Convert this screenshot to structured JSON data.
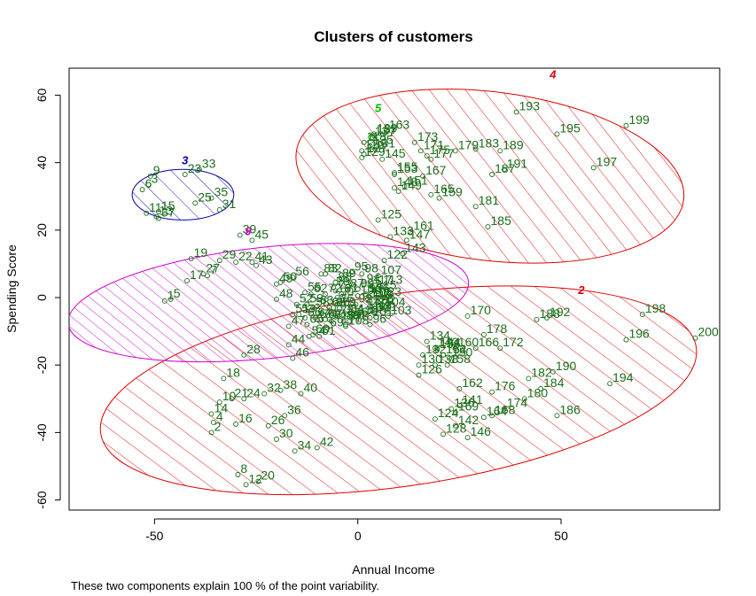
{
  "chart_data": {
    "type": "scatter",
    "title": "Clusters of customers",
    "xlabel": "Annual Income",
    "ylabel": "Spending Score",
    "xlim": [
      -71,
      89
    ],
    "ylim": [
      -63,
      68
    ],
    "xticks": [
      -50,
      0,
      50
    ],
    "yticks": [
      -60,
      -40,
      -20,
      0,
      20,
      40,
      60
    ],
    "grid": false,
    "footnote": "These two components explain 100 % of the point variability.",
    "points": [
      {
        "id": "1",
        "x": -47.5,
        "y": -1
      },
      {
        "id": "2",
        "x": -36,
        "y": -40
      },
      {
        "id": "3",
        "x": -51.5,
        "y": 33.5
      },
      {
        "id": "4",
        "x": -35.5,
        "y": -37
      },
      {
        "id": "5",
        "x": -46,
        "y": -0.5
      },
      {
        "id": "6",
        "x": -53,
        "y": 32
      },
      {
        "id": "7",
        "x": -37,
        "y": 6.5
      },
      {
        "id": "8",
        "x": -29.5,
        "y": -52.5
      },
      {
        "id": "9",
        "x": -51,
        "y": 36
      },
      {
        "id": "10",
        "x": -34,
        "y": -31
      },
      {
        "id": "11",
        "x": -52,
        "y": 25
      },
      {
        "id": "12",
        "x": -27.5,
        "y": -55.5
      },
      {
        "id": "13",
        "x": -49.5,
        "y": 24
      },
      {
        "id": "14",
        "x": -36,
        "y": -34.5
      },
      {
        "id": "15",
        "x": -49,
        "y": 25.5
      },
      {
        "id": "16",
        "x": -30,
        "y": -37.5
      },
      {
        "id": "17",
        "x": -42,
        "y": 5
      },
      {
        "id": "18",
        "x": -33,
        "y": -24
      },
      {
        "id": "19",
        "x": -41,
        "y": 11.5
      },
      {
        "id": "20",
        "x": -24.5,
        "y": -54.5
      },
      {
        "id": "21",
        "x": -31,
        "y": -30
      },
      {
        "id": "22",
        "x": -30,
        "y": 10.5
      },
      {
        "id": "23",
        "x": -42.5,
        "y": 36.5
      },
      {
        "id": "24",
        "x": -28,
        "y": -30
      },
      {
        "id": "25",
        "x": -40,
        "y": 28
      },
      {
        "id": "26",
        "x": -22,
        "y": -38
      },
      {
        "id": "27",
        "x": -38,
        "y": 7
      },
      {
        "id": "28",
        "x": -28,
        "y": -17
      },
      {
        "id": "29",
        "x": -34,
        "y": 11
      },
      {
        "id": "30",
        "x": -20,
        "y": -42
      },
      {
        "id": "31",
        "x": -34,
        "y": 26
      },
      {
        "id": "32",
        "x": -23,
        "y": -28.5
      },
      {
        "id": "33",
        "x": -39,
        "y": 38
      },
      {
        "id": "34",
        "x": -15.5,
        "y": -45.5
      },
      {
        "id": "35",
        "x": -36,
        "y": 29.5
      },
      {
        "id": "36",
        "x": -18,
        "y": -35
      },
      {
        "id": "37",
        "x": -49,
        "y": 23.5
      },
      {
        "id": "38",
        "x": -19,
        "y": -27.5
      },
      {
        "id": "39",
        "x": -29,
        "y": 18.5
      },
      {
        "id": "40",
        "x": -14,
        "y": -28.5
      },
      {
        "id": "41",
        "x": -26,
        "y": 10.5
      },
      {
        "id": "42",
        "x": -10,
        "y": -44.5
      },
      {
        "id": "43",
        "x": -25,
        "y": 9.5
      },
      {
        "id": "44",
        "x": -17,
        "y": -14
      },
      {
        "id": "45",
        "x": -26,
        "y": 17
      },
      {
        "id": "46",
        "x": -16,
        "y": -18
      },
      {
        "id": "47",
        "x": -17,
        "y": -8.5
      },
      {
        "id": "48",
        "x": -20,
        "y": -0.5
      },
      {
        "id": "49",
        "x": -20,
        "y": 4
      },
      {
        "id": "50",
        "x": -19,
        "y": 4.5
      },
      {
        "id": "51",
        "x": -16,
        "y": -5
      },
      {
        "id": "52",
        "x": -15,
        "y": -2
      },
      {
        "id": "53",
        "x": -14.5,
        "y": -5
      },
      {
        "id": "54",
        "x": -12,
        "y": -11.5
      },
      {
        "id": "55",
        "x": -13,
        "y": 1.5
      },
      {
        "id": "56",
        "x": -16,
        "y": 6
      },
      {
        "id": "57",
        "x": -10,
        "y": -6.5
      },
      {
        "id": "58",
        "x": -11,
        "y": -3
      },
      {
        "id": "59",
        "x": -12.5,
        "y": -2
      },
      {
        "id": "60",
        "x": -11,
        "y": -11
      },
      {
        "id": "61",
        "x": -9.5,
        "y": -11.5
      },
      {
        "id": "62",
        "x": -11.5,
        "y": 1
      },
      {
        "id": "63",
        "x": -10,
        "y": -2.5
      },
      {
        "id": "64",
        "x": -10.5,
        "y": -6
      },
      {
        "id": "65",
        "x": -12.5,
        "y": -8
      },
      {
        "id": "66",
        "x": -13,
        "y": -6
      },
      {
        "id": "67",
        "x": -8,
        "y": -6.5
      },
      {
        "id": "68",
        "x": -7,
        "y": -3
      },
      {
        "id": "69",
        "x": -7.5,
        "y": -9
      },
      {
        "id": "70",
        "x": -7,
        "y": -6.5
      },
      {
        "id": "71",
        "x": -6.5,
        "y": -7
      },
      {
        "id": "72",
        "x": -8,
        "y": 1
      },
      {
        "id": "73",
        "x": -5.5,
        "y": 2
      },
      {
        "id": "74",
        "x": -9,
        "y": -6.5
      },
      {
        "id": "75",
        "x": -5,
        "y": -5.5
      },
      {
        "id": "76",
        "x": -5,
        "y": -2
      },
      {
        "id": "77",
        "x": -3,
        "y": -8
      },
      {
        "id": "78",
        "x": -6,
        "y": 3
      },
      {
        "id": "79",
        "x": -4.5,
        "y": -3
      },
      {
        "id": "80",
        "x": -3.5,
        "y": -7
      },
      {
        "id": "81",
        "x": -4,
        "y": 1
      },
      {
        "id": "82",
        "x": -8,
        "y": 7
      },
      {
        "id": "83",
        "x": -9,
        "y": 7
      },
      {
        "id": "84",
        "x": -2.5,
        "y": -5
      },
      {
        "id": "85",
        "x": -6,
        "y": -3
      },
      {
        "id": "86",
        "x": -1.5,
        "y": -6
      },
      {
        "id": "87",
        "x": -2.5,
        "y": 2.5
      },
      {
        "id": "88",
        "x": -5.5,
        "y": 4.5
      },
      {
        "id": "89",
        "x": -4.5,
        "y": 5.5
      },
      {
        "id": "90",
        "x": -5,
        "y": 0
      },
      {
        "id": "91",
        "x": -2,
        "y": -7
      },
      {
        "id": "92",
        "x": -0.5,
        "y": -2
      },
      {
        "id": "93",
        "x": 2,
        "y": 1
      },
      {
        "id": "94",
        "x": 1.5,
        "y": 4
      },
      {
        "id": "95",
        "x": -1.5,
        "y": 7.5
      },
      {
        "id": "96",
        "x": 3,
        "y": -8
      },
      {
        "id": "97",
        "x": 3.5,
        "y": -3.5
      },
      {
        "id": "98",
        "x": 1,
        "y": 7
      },
      {
        "id": "99",
        "x": 0,
        "y": 2.5
      },
      {
        "id": "100",
        "x": 0,
        "y": 0.5
      },
      {
        "id": "101",
        "x": 3,
        "y": -6
      },
      {
        "id": "102",
        "x": 3.5,
        "y": -2.5
      },
      {
        "id": "103",
        "x": 7.5,
        "y": -5.5
      },
      {
        "id": "104",
        "x": 6,
        "y": -3
      },
      {
        "id": "105",
        "x": 3,
        "y": 0
      },
      {
        "id": "106",
        "x": 2,
        "y": 1
      },
      {
        "id": "107",
        "x": 5,
        "y": 6.5
      },
      {
        "id": "108",
        "x": -3,
        "y": -8.5
      },
      {
        "id": "109",
        "x": 2,
        "y": -5
      },
      {
        "id": "110",
        "x": -0.5,
        "y": -5.5
      },
      {
        "id": "111",
        "x": -3.5,
        "y": -5
      },
      {
        "id": "112",
        "x": 2.5,
        "y": -0.5
      },
      {
        "id": "113",
        "x": 5.5,
        "y": 3.5
      },
      {
        "id": "114",
        "x": 3,
        "y": -4
      },
      {
        "id": "115",
        "x": 4,
        "y": 2
      },
      {
        "id": "116",
        "x": 3,
        "y": -1
      },
      {
        "id": "117",
        "x": 3,
        "y": 3.5
      },
      {
        "id": "118",
        "x": 1.5,
        "y": 46
      },
      {
        "id": "119",
        "x": 1,
        "y": 43.5
      },
      {
        "id": "120",
        "x": 3,
        "y": -2.5
      },
      {
        "id": "121",
        "x": 4,
        "y": -4.5
      },
      {
        "id": "122",
        "x": 6.5,
        "y": 11
      },
      {
        "id": "123",
        "x": 5,
        "y": 0
      },
      {
        "id": "124",
        "x": 19,
        "y": -36
      },
      {
        "id": "125",
        "x": 5,
        "y": 23
      },
      {
        "id": "126",
        "x": 15,
        "y": -23
      },
      {
        "id": "127",
        "x": 1.5,
        "y": 42.5
      },
      {
        "id": "128",
        "x": 21,
        "y": -40.5
      },
      {
        "id": "129",
        "x": 1,
        "y": 41.5
      },
      {
        "id": "130",
        "x": 15,
        "y": -20
      },
      {
        "id": "131",
        "x": 3.5,
        "y": 44
      },
      {
        "id": "132",
        "x": 16,
        "y": -17
      },
      {
        "id": "133",
        "x": 8,
        "y": 18
      },
      {
        "id": "134",
        "x": 17,
        "y": -13
      },
      {
        "id": "135",
        "x": 3,
        "y": 45
      },
      {
        "id": "136",
        "x": 23,
        "y": -33
      },
      {
        "id": "137",
        "x": 3.5,
        "y": 47.5
      },
      {
        "id": "138",
        "x": 19,
        "y": -20
      },
      {
        "id": "139",
        "x": 4,
        "y": 48.5
      },
      {
        "id": "140",
        "x": 19,
        "y": -15
      },
      {
        "id": "141",
        "x": 25,
        "y": -32
      },
      {
        "id": "142",
        "x": 24,
        "y": -38
      },
      {
        "id": "143",
        "x": 11,
        "y": 13
      },
      {
        "id": "144",
        "x": 19.5,
        "y": -15
      },
      {
        "id": "145",
        "x": 6,
        "y": 41
      },
      {
        "id": "146",
        "x": 27,
        "y": -41.5
      },
      {
        "id": "147",
        "x": 12,
        "y": 17
      },
      {
        "id": "148",
        "x": 9,
        "y": 32.5
      },
      {
        "id": "149",
        "x": 10,
        "y": 31.5
      },
      {
        "id": "150",
        "x": 22.5,
        "y": -18
      },
      {
        "id": "151",
        "x": 11.5,
        "y": 33
      },
      {
        "id": "152",
        "x": 21,
        "y": -17
      },
      {
        "id": "153",
        "x": 9,
        "y": 36.5
      },
      {
        "id": "154",
        "x": 21,
        "y": -17
      },
      {
        "id": "155",
        "x": 9,
        "y": 37
      },
      {
        "id": "156",
        "x": 19.5,
        "y": -15.5
      },
      {
        "id": "157",
        "x": 4,
        "y": 48
      },
      {
        "id": "158",
        "x": 22,
        "y": -20
      },
      {
        "id": "159",
        "x": 20,
        "y": 29.5
      },
      {
        "id": "160",
        "x": 24,
        "y": -15
      },
      {
        "id": "161",
        "x": 13,
        "y": 19.5
      },
      {
        "id": "162",
        "x": 25,
        "y": -27
      },
      {
        "id": "163",
        "x": 7,
        "y": 49.5
      },
      {
        "id": "164",
        "x": 31,
        "y": -35.5
      },
      {
        "id": "165",
        "x": 18,
        "y": 30.5
      },
      {
        "id": "166",
        "x": 29,
        "y": -15
      },
      {
        "id": "167",
        "x": 16,
        "y": 36
      },
      {
        "id": "168",
        "x": 33,
        "y": -35
      },
      {
        "id": "169",
        "x": 24,
        "y": -34
      },
      {
        "id": "170",
        "x": 27,
        "y": -5.5
      },
      {
        "id": "171",
        "x": 15.5,
        "y": 43.5
      },
      {
        "id": "172",
        "x": 35,
        "y": -15
      },
      {
        "id": "173",
        "x": 14,
        "y": 46
      },
      {
        "id": "174",
        "x": 36,
        "y": -33
      },
      {
        "id": "175",
        "x": 17,
        "y": 42
      },
      {
        "id": "176",
        "x": 33,
        "y": -28
      },
      {
        "id": "177",
        "x": 18,
        "y": 41
      },
      {
        "id": "178",
        "x": 31,
        "y": -11
      },
      {
        "id": "179",
        "x": 24,
        "y": 43.5
      },
      {
        "id": "180",
        "x": 41,
        "y": -30
      },
      {
        "id": "181",
        "x": 29,
        "y": 27
      },
      {
        "id": "182",
        "x": 42,
        "y": -24
      },
      {
        "id": "183",
        "x": 29,
        "y": 44
      },
      {
        "id": "184",
        "x": 45,
        "y": -27
      },
      {
        "id": "185",
        "x": 32,
        "y": 21
      },
      {
        "id": "186",
        "x": 49,
        "y": -35
      },
      {
        "id": "187",
        "x": 33,
        "y": 36.5
      },
      {
        "id": "188",
        "x": 44,
        "y": -6.5
      },
      {
        "id": "189",
        "x": 35,
        "y": 43.5
      },
      {
        "id": "190",
        "x": 48,
        "y": -22
      },
      {
        "id": "191",
        "x": 36,
        "y": 38
      },
      {
        "id": "192",
        "x": 46.5,
        "y": -6
      },
      {
        "id": "193",
        "x": 39,
        "y": 55
      },
      {
        "id": "194",
        "x": 62,
        "y": -25.5
      },
      {
        "id": "195",
        "x": 49,
        "y": 48.5
      },
      {
        "id": "196",
        "x": 66,
        "y": -12.5
      },
      {
        "id": "197",
        "x": 58,
        "y": 38.5
      },
      {
        "id": "198",
        "x": 70,
        "y": -5
      },
      {
        "id": "199",
        "x": 66,
        "y": 51
      },
      {
        "id": "200",
        "x": 83,
        "y": -12
      }
    ],
    "clusters": [
      {
        "label": "2",
        "cx": 10,
        "cy": -27.5,
        "rx": 74,
        "ry": 28.5,
        "angle": -8.2,
        "color": "#dd0000",
        "hatch": "red"
      },
      {
        "label": "3",
        "cx": -43,
        "cy": 30.5,
        "rx": 12.5,
        "ry": 7.5,
        "angle": 0,
        "color": "#0000aa",
        "hatch": "blue"
      },
      {
        "label": "4",
        "cx": 32.5,
        "cy": 36,
        "rx": 48,
        "ry": 25,
        "angle": 7,
        "color": "#dd0000",
        "hatch": "red"
      },
      {
        "label": "5",
        "cx": 3.5,
        "cy": 47.5,
        "rx": 0.9,
        "ry": 0.9,
        "angle": 0,
        "color": "#00bb00",
        "hatch": "none"
      },
      {
        "label": "9",
        "cx": -22,
        "cy": -1.5,
        "rx": 49.5,
        "ry": 16.5,
        "angle": -6,
        "color": "#cc00cc",
        "hatch": "magenta"
      }
    ],
    "cluster_label_positions": [
      {
        "label": "2",
        "x": 55,
        "y": 1
      },
      {
        "label": "3",
        "x": -42.5,
        "y": 39.5
      },
      {
        "label": "4",
        "x": 48,
        "y": 65
      },
      {
        "label": "5",
        "x": 5,
        "y": 55
      },
      {
        "label": "9",
        "x": -27,
        "y": 18.5
      }
    ]
  }
}
